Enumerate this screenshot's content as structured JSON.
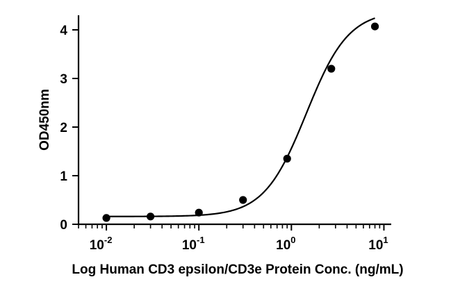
{
  "chart_data": {
    "type": "scatter",
    "xscale": "log",
    "xlabel": "Log Human CD3 epsilon/CD3e Protein Conc. (ng/mL)",
    "ylabel": "OD450nm",
    "xlim": [
      0.005,
      12
    ],
    "ylim": [
      0,
      4.3
    ],
    "x_ticks": [
      {
        "value": 0.01,
        "base": "10",
        "exp": "-2"
      },
      {
        "value": 0.1,
        "base": "10",
        "exp": "-1"
      },
      {
        "value": 1,
        "base": "10",
        "exp": "0"
      },
      {
        "value": 10,
        "base": "10",
        "exp": "1"
      }
    ],
    "y_ticks": [
      "0",
      "1",
      "2",
      "3",
      "4"
    ],
    "grid": false,
    "series": [
      {
        "x": [
          0.01,
          0.03,
          0.1,
          0.3,
          0.9,
          2.7,
          8.0
        ],
        "y": [
          0.13,
          0.16,
          0.24,
          0.5,
          1.35,
          3.2,
          4.07
        ]
      }
    ],
    "fit_curve": {
      "type": "4PL",
      "bottom": 0.16,
      "top": 4.4,
      "ec50": 1.45,
      "hill": 1.9
    }
  }
}
